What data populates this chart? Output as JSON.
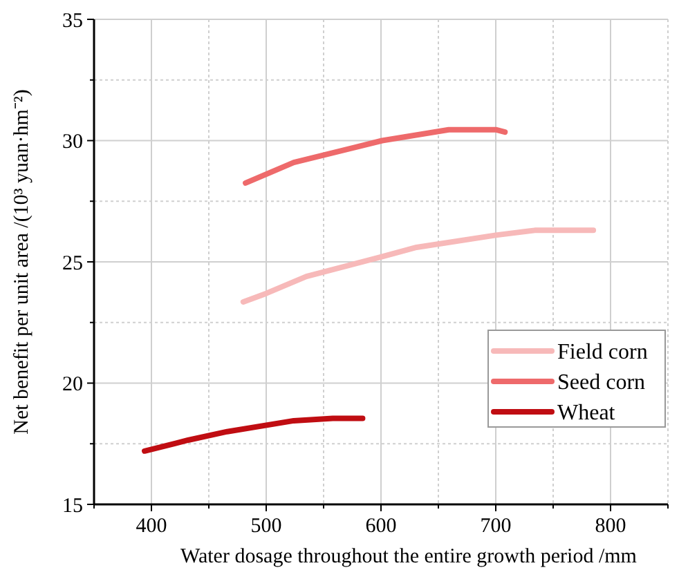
{
  "chart_data": {
    "type": "line",
    "xlabel": "Water dosage throughout the entire growth period /mm",
    "ylabel": "Net benefit per unit area /(10³ yuan·hm⁻²)",
    "xlim": [
      350,
      850
    ],
    "xticks": [
      {
        "value": 350,
        "label": null
      },
      400,
      {
        "value": 450,
        "label": null
      },
      500,
      {
        "value": 550,
        "label": null
      },
      600,
      {
        "value": 650,
        "label": null
      },
      700,
      {
        "value": 750,
        "label": null
      },
      800,
      {
        "value": 850,
        "label": null
      }
    ],
    "ylim": [
      15,
      35
    ],
    "yticks": [
      15,
      {
        "value": 17.5,
        "label": null
      },
      20,
      {
        "value": 22.5,
        "label": null
      },
      25,
      {
        "value": 27.5,
        "label": null
      },
      30,
      {
        "value": 32.5,
        "label": null
      },
      35
    ],
    "grid": true,
    "legend": "bottom right",
    "marker": "none",
    "line_style": "solid",
    "series": [
      {
        "name": "Field corn",
        "color": "#f7b9b9",
        "x": [
          480,
          500,
          535,
          600,
          631,
          700,
          734,
          785
        ],
        "values": [
          23.35,
          23.7,
          24.4,
          25.2,
          25.6,
          26.1,
          26.3,
          26.3
        ]
      },
      {
        "name": "Seed corn",
        "color": "#ee6a6b",
        "x": [
          482,
          524,
          601,
          659,
          700,
          708
        ],
        "values": [
          28.25,
          29.1,
          30.0,
          30.45,
          30.45,
          30.35
        ]
      },
      {
        "name": "Wheat",
        "color": "#c00d12",
        "x": [
          394,
          432,
          466,
          524,
          558,
          584
        ],
        "values": [
          17.2,
          17.65,
          18.0,
          18.45,
          18.55,
          18.55
        ]
      }
    ]
  }
}
